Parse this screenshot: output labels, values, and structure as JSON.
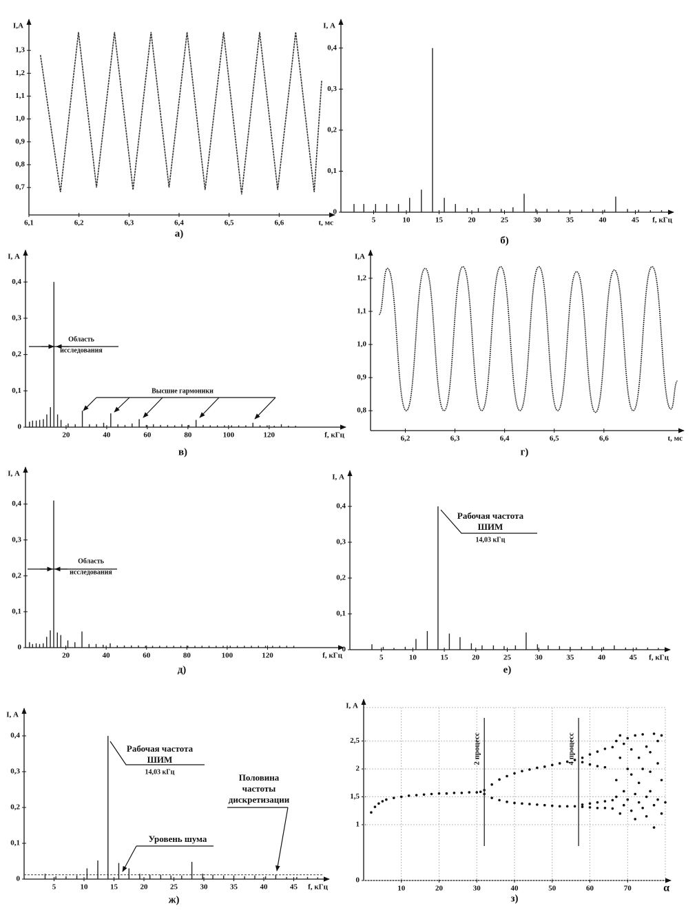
{
  "chart_data": [
    {
      "type": "line",
      "caption": "а)",
      "y_label": "I,А",
      "x_label": "t, мс",
      "x": [
        6.123,
        6.163,
        6.199,
        6.235,
        6.271,
        6.308,
        6.344,
        6.38,
        6.416,
        6.452,
        6.489,
        6.525,
        6.561,
        6.597,
        6.633,
        6.67,
        6.685
      ],
      "values": [
        1.28,
        0.68,
        1.38,
        0.7,
        1.38,
        0.69,
        1.38,
        0.7,
        1.38,
        0.69,
        1.38,
        0.67,
        1.38,
        0.69,
        1.38,
        0.68,
        1.17
      ],
      "color": "#333333",
      "xlim": [
        6.1,
        6.7
      ],
      "ylim": [
        0.58,
        1.4
      ],
      "xticks": [
        {
          "value": 6.1,
          "label": "6,1"
        },
        {
          "value": 6.2,
          "label": "6,2"
        },
        {
          "value": 6.3,
          "label": "6,3"
        },
        {
          "value": 6.4,
          "label": "6,4"
        },
        {
          "value": 6.5,
          "label": "6,5"
        },
        {
          "value": 6.6,
          "label": "6,6"
        }
      ],
      "yticks": [
        {
          "value": 0.7,
          "label": "0,7"
        },
        {
          "value": 0.8,
          "label": "0,8"
        },
        {
          "value": 0.9,
          "label": "0,9"
        },
        {
          "value": 1.0,
          "label": "1,0"
        },
        {
          "value": 1.1,
          "label": "1,1"
        },
        {
          "value": 1.2,
          "label": "1,2"
        },
        {
          "value": 1.3,
          "label": "1,3"
        }
      ]
    },
    {
      "type": "stem",
      "caption": "б)",
      "y_label": "I, А",
      "x_label": "f, кГц",
      "x": [
        2,
        3.5,
        5.3,
        7,
        8.8,
        10.5,
        12.3,
        14,
        15.8,
        17.5,
        19.3,
        21,
        22.8,
        24.5,
        26.3,
        28,
        29.8,
        31.5,
        33.3,
        35,
        36.8,
        38.5,
        40.3,
        42,
        43.8,
        45.5,
        47.3,
        49
      ],
      "values": [
        0.02,
        0.02,
        0.02,
        0.02,
        0.02,
        0.035,
        0.055,
        0.4,
        0.035,
        0.02,
        0.01,
        0.01,
        0.008,
        0.008,
        0.012,
        0.045,
        0.008,
        0.008,
        0.006,
        0.006,
        0.006,
        0.008,
        0.006,
        0.038,
        0.008,
        0.006,
        0.005,
        0.005
      ],
      "color": "#222222",
      "xlim": [
        0,
        50
      ],
      "ylim": [
        0,
        0.45
      ],
      "xticks": [
        5,
        10,
        15,
        20,
        25,
        30,
        35,
        40,
        45
      ],
      "yticks": [
        0,
        {
          "value": 0.1,
          "label": "0,1"
        },
        {
          "value": 0.2,
          "label": "0,2"
        },
        {
          "value": 0.3,
          "label": "0,3"
        },
        {
          "value": 0.4,
          "label": "0,4"
        }
      ]
    },
    {
      "type": "stem",
      "caption": "в)",
      "y_label": "I, А",
      "x_label": "f, кГц",
      "annotations": [
        [
          "Область",
          "исследования"
        ],
        [
          "Высшие гармоники"
        ]
      ],
      "x": [
        2,
        3.5,
        5.3,
        7,
        8.8,
        10.5,
        12.3,
        14,
        15.8,
        17.5,
        21,
        24.5,
        28,
        31.5,
        35,
        38.5,
        42,
        45.5,
        49,
        52.5,
        56,
        59.5,
        63,
        66.5,
        70,
        73.5,
        77,
        80.5,
        84,
        87.5,
        91,
        94.5,
        98,
        101.5,
        105,
        108.5,
        112,
        115.5,
        119,
        122.5,
        126,
        129.5,
        133
      ],
      "values": [
        0.015,
        0.018,
        0.018,
        0.02,
        0.022,
        0.035,
        0.055,
        0.4,
        0.035,
        0.02,
        0.01,
        0.008,
        0.045,
        0.008,
        0.008,
        0.012,
        0.038,
        0.008,
        0.006,
        0.01,
        0.022,
        0.006,
        0.008,
        0.006,
        0.006,
        0.005,
        0.008,
        0.006,
        0.02,
        0.006,
        0.005,
        0.005,
        0.005,
        0.005,
        0.005,
        0.005,
        0.012,
        0.005,
        0.005,
        0.004,
        0.008,
        0.004,
        0.004
      ],
      "color": "#222222",
      "xlim": [
        0,
        155
      ],
      "ylim": [
        0,
        0.465
      ],
      "xticks": [
        20,
        40,
        60,
        80,
        100,
        120
      ],
      "yticks": [
        0,
        {
          "value": 0.1,
          "label": "0,1"
        },
        {
          "value": 0.2,
          "label": "0,2"
        },
        {
          "value": 0.3,
          "label": "0,3"
        },
        {
          "value": 0.4,
          "label": "0,4"
        }
      ]
    },
    {
      "type": "line",
      "smooth": true,
      "caption": "г)",
      "y_label": "I,А",
      "x_label": "t, мс",
      "x": [
        6.147,
        6.164,
        6.202,
        6.24,
        6.278,
        6.316,
        6.354,
        6.392,
        6.431,
        6.469,
        6.507,
        6.545,
        6.583,
        6.621,
        6.659,
        6.697,
        6.735,
        6.748
      ],
      "values": [
        1.09,
        1.23,
        0.8,
        1.23,
        0.8,
        1.235,
        0.8,
        1.235,
        0.8,
        1.235,
        0.8,
        1.22,
        0.795,
        1.225,
        0.8,
        1.235,
        0.805,
        0.89
      ],
      "color": "#333333",
      "xlim": [
        6.13,
        6.75
      ],
      "ylim": [
        0.74,
        1.26
      ],
      "xticks": [
        {
          "value": 6.2,
          "label": "6,2"
        },
        {
          "value": 6.3,
          "label": "6,3"
        },
        {
          "value": 6.4,
          "label": "6,4"
        },
        {
          "value": 6.5,
          "label": "6,5"
        },
        {
          "value": 6.6,
          "label": "6,6"
        }
      ],
      "yticks": [
        {
          "value": 0.8,
          "label": "0,8"
        },
        {
          "value": 0.9,
          "label": "0,9"
        },
        {
          "value": 1.0,
          "label": "1,0"
        },
        {
          "value": 1.1,
          "label": "1,1"
        },
        {
          "value": 1.2,
          "label": "1,2"
        }
      ]
    },
    {
      "type": "stem",
      "caption": "д)",
      "y_label": "I, А",
      "x_label": "f, кГц",
      "annotations": [
        [
          "Область",
          "исследования"
        ]
      ],
      "x": [
        2,
        3.5,
        5.3,
        7,
        8.8,
        10.5,
        12.3,
        14,
        15.8,
        17.5,
        21,
        24.5,
        28,
        31.5,
        35,
        38.5,
        42,
        45.5,
        49,
        52.5,
        56,
        59.5,
        63,
        66.5,
        70,
        73.5,
        77,
        80.5,
        84,
        87.5,
        91,
        94.5,
        98,
        101.5,
        105,
        108.5,
        112,
        115.5,
        119,
        122.5,
        126,
        129.5,
        133
      ],
      "values": [
        0.015,
        0.01,
        0.012,
        0.01,
        0.012,
        0.03,
        0.048,
        0.41,
        0.042,
        0.035,
        0.02,
        0.015,
        0.045,
        0.01,
        0.01,
        0.008,
        0.012,
        0.006,
        0.006,
        0.006,
        0.006,
        0.005,
        0.005,
        0.005,
        0.005,
        0.005,
        0.005,
        0.005,
        0.005,
        0.005,
        0.005,
        0.005,
        0.005,
        0.005,
        0.005,
        0.005,
        0.005,
        0.005,
        0.005,
        0.005,
        0.005,
        0.005,
        0.005
      ],
      "color": "#222222",
      "xlim": [
        0,
        155
      ],
      "ylim": [
        0,
        0.48
      ],
      "xticks": [
        20,
        40,
        60,
        80,
        100,
        120
      ],
      "yticks": [
        0,
        {
          "value": 0.1,
          "label": "0,1"
        },
        {
          "value": 0.2,
          "label": "0,2"
        },
        {
          "value": 0.3,
          "label": "0,3"
        },
        {
          "value": 0.4,
          "label": "0,4"
        }
      ]
    },
    {
      "type": "stem",
      "caption": "е)",
      "y_label": "I, А",
      "x_label": "f, кГц",
      "annotations": [
        [
          "Рабочая частота",
          "ШИМ",
          "14,03 кГц"
        ]
      ],
      "x": [
        3.5,
        5.3,
        7,
        8.8,
        10.5,
        12.3,
        14,
        15.8,
        17.5,
        19.3,
        21,
        22.8,
        24.5,
        26.3,
        28,
        29.8,
        31.5,
        33.3,
        35,
        36.8,
        38.5,
        40.3,
        42,
        43.8,
        45.5,
        47.3,
        49
      ],
      "values": [
        0.015,
        0.008,
        0.005,
        0.008,
        0.03,
        0.052,
        0.4,
        0.045,
        0.035,
        0.018,
        0.012,
        0.012,
        0.01,
        0.012,
        0.048,
        0.015,
        0.012,
        0.01,
        0.008,
        0.008,
        0.01,
        0.008,
        0.012,
        0.006,
        0.006,
        0.006,
        0.005
      ],
      "color": "#222222",
      "xlim": [
        0,
        50
      ],
      "ylim": [
        0,
        0.477
      ],
      "xticks": [
        5,
        10,
        15,
        20,
        25,
        30,
        35,
        40,
        45
      ],
      "yticks": [
        0,
        {
          "value": 0.1,
          "label": "0,1"
        },
        {
          "value": 0.2,
          "label": "0,2"
        },
        {
          "value": 0.3,
          "label": "0,3"
        },
        {
          "value": 0.4,
          "label": "0,4"
        }
      ]
    },
    {
      "type": "stem",
      "caption": "ж)",
      "y_label": "I, А",
      "x_label": "f, кГц",
      "annotations": [
        [
          "Рабочая частота",
          "ШИМ",
          "14,03 кГц"
        ],
        [
          "Уровень шума"
        ],
        [
          "Половина",
          "частоты",
          "дискретизации"
        ]
      ],
      "noise_level": 0.012,
      "x": [
        3.5,
        5.3,
        7,
        8.8,
        10.5,
        12.3,
        14,
        15.8,
        17.5,
        19.3,
        21,
        22.8,
        24.5,
        26.3,
        28,
        29.8,
        31.5,
        33.3,
        35,
        36.8,
        38.5,
        40.3,
        42,
        43.8,
        45.5,
        47.3,
        49
      ],
      "values": [
        0.015,
        0.008,
        0.008,
        0.01,
        0.03,
        0.052,
        0.4,
        0.045,
        0.03,
        0.015,
        0.012,
        0.012,
        0.01,
        0.01,
        0.048,
        0.015,
        0.012,
        0.01,
        0.01,
        0.008,
        0.01,
        0.008,
        0.012,
        0.006,
        0.006,
        0.006,
        0.005
      ],
      "color": "#222222",
      "xlim": [
        0,
        50
      ],
      "ylim": [
        0,
        0.454
      ],
      "xticks": [
        5,
        10,
        15,
        20,
        25,
        30,
        35,
        40,
        45
      ],
      "yticks": [
        0,
        {
          "value": 0.1,
          "label": "0,1"
        },
        {
          "value": 0.2,
          "label": "0,2"
        },
        {
          "value": 0.3,
          "label": "0,3"
        },
        {
          "value": 0.4,
          "label": "0,4"
        }
      ]
    },
    {
      "type": "scatter",
      "caption": "з)",
      "y_label": "I, А",
      "x_label": "α",
      "grid": true,
      "markers": [
        {
          "x": 32,
          "label": "2 процесс"
        },
        {
          "x": 57,
          "label": "4 процесс"
        }
      ],
      "x": [
        2,
        3,
        4,
        5,
        6,
        8,
        10,
        12,
        14,
        16,
        18,
        20,
        22,
        24,
        26,
        28,
        30,
        31,
        32,
        34,
        36,
        38,
        40,
        42,
        44,
        46,
        48,
        50,
        52,
        54,
        56,
        58,
        60,
        62,
        64,
        66,
        58,
        60,
        62,
        64,
        32,
        34,
        36,
        38,
        40,
        42,
        44,
        46,
        48,
        50,
        52,
        54,
        56,
        58,
        60,
        62,
        64,
        66,
        58,
        60,
        62,
        64,
        66,
        67,
        67,
        67,
        68,
        68,
        68,
        69,
        69,
        69,
        70,
        70,
        70,
        71,
        71,
        71,
        72,
        72,
        72,
        73,
        73,
        73,
        74,
        74,
        74,
        75,
        75,
        75,
        76,
        76,
        76,
        77,
        77,
        77,
        78,
        78,
        78,
        79,
        79,
        79,
        80
      ],
      "values": [
        1.22,
        1.32,
        1.38,
        1.42,
        1.45,
        1.48,
        1.5,
        1.52,
        1.53,
        1.54,
        1.55,
        1.56,
        1.56,
        1.57,
        1.57,
        1.58,
        1.58,
        1.59,
        1.62,
        1.72,
        1.81,
        1.87,
        1.92,
        1.96,
        1.99,
        2.02,
        2.04,
        2.07,
        2.1,
        2.13,
        2.16,
        2.2,
        2.26,
        2.31,
        2.36,
        2.39,
        2.12,
        2.08,
        2.05,
        2.03,
        1.55,
        1.48,
        1.44,
        1.41,
        1.39,
        1.38,
        1.37,
        1.36,
        1.35,
        1.34,
        1.33,
        1.33,
        1.33,
        1.32,
        1.31,
        1.3,
        1.3,
        1.29,
        1.36,
        1.38,
        1.4,
        1.42,
        1.44,
        2.5,
        1.8,
        1.5,
        2.6,
        2.2,
        1.2,
        2.45,
        1.6,
        1.35,
        2.0,
        1.45,
        2.55,
        1.9,
        1.25,
        2.35,
        2.6,
        1.55,
        1.1,
        2.2,
        1.4,
        1.75,
        2.62,
        1.3,
        2.0,
        1.5,
        2.4,
        1.15,
        2.3,
        1.6,
        1.95,
        2.63,
        1.35,
        0.95,
        2.1,
        1.45,
        2.5,
        1.2,
        1.8,
        2.6,
        1.4
      ],
      "color": "#111111",
      "xlim": [
        0,
        80
      ],
      "ylim": [
        0,
        3.1
      ],
      "xticks": [
        10,
        20,
        30,
        40,
        50,
        60,
        70
      ],
      "yticks": [
        0,
        1,
        {
          "value": 1.5,
          "label": "1,5"
        },
        2,
        {
          "value": 2.5,
          "label": "2,5"
        }
      ]
    }
  ]
}
